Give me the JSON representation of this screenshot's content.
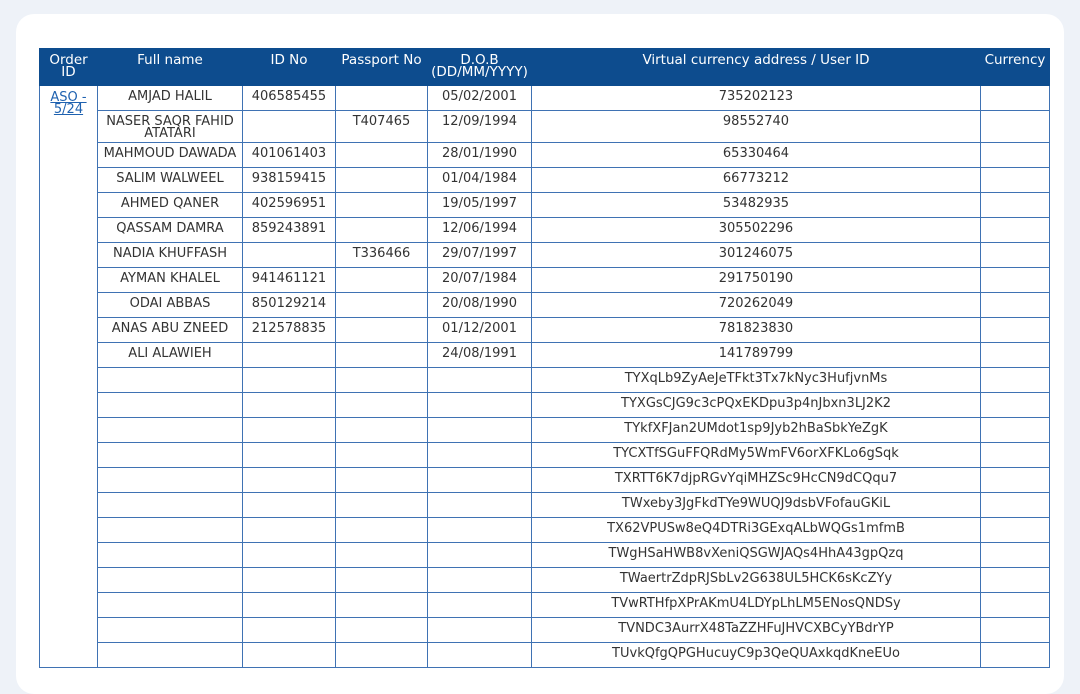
{
  "table": {
    "header": [
      "Order ID",
      "Full name",
      "ID No",
      "Passport No",
      "D.O.B (DD/MM/YYYY)",
      "Virtual currency address / User ID",
      "Currency"
    ],
    "order_id": "ASO - 5/24",
    "rows": [
      [
        "AMJAD HALIL",
        "406585455",
        null,
        "05/02/2001",
        "735202123"
      ],
      [
        "NASER SAQR FAHID ATATARI",
        null,
        "T407465",
        "12/09/1994",
        "98552740"
      ],
      [
        "MAHMOUD DAWADA",
        "401061403",
        null,
        "28/01/1990",
        "65330464"
      ],
      [
        "SALIM WALWEEL",
        "938159415",
        null,
        "01/04/1984",
        "66773212"
      ],
      [
        "AHMED QANER",
        "402596951",
        null,
        "19/05/1997",
        "53482935"
      ],
      [
        "QASSAM DAMRA",
        "859243891",
        null,
        "12/06/1994",
        "305502296"
      ],
      [
        "NADIA KHUFFASH",
        null,
        "T336466",
        "29/07/1997",
        "301246075"
      ],
      [
        "AYMAN KHALEL",
        "941461121",
        null,
        "20/07/1984",
        "291750190"
      ],
      [
        "ODAI ABBAS",
        "850129214",
        null,
        "20/08/1990",
        "720262049"
      ],
      [
        "ANAS ABU ZNEED",
        "212578835",
        null,
        "01/12/2001",
        "781823830"
      ],
      [
        "ALI ALAWIEH",
        null,
        null,
        "24/08/1991",
        "141789799"
      ],
      [
        null,
        null,
        null,
        null,
        "TYXqLb9ZyAeJeTFkt3Tx7kNyc3HufjvnMs"
      ],
      [
        null,
        null,
        null,
        null,
        "TYXGsCJG9c3cPQxEKDpu3p4nJbxn3LJ2K2"
      ],
      [
        null,
        null,
        null,
        null,
        "TYkfXFJan2UMdot1sp9Jyb2hBaSbkYeZgK"
      ],
      [
        null,
        null,
        null,
        null,
        "TYCXTfSGuFFQRdMy5WmFV6orXFKLo6gSqk"
      ],
      [
        null,
        null,
        null,
        null,
        "TXRTT6K7djpRGvYqiMHZSc9HcCN9dCQqu7"
      ],
      [
        null,
        null,
        null,
        null,
        "TWxeby3JgFkdTYe9WUQJ9dsbVFofauGKiL"
      ],
      [
        null,
        null,
        null,
        null,
        "TX62VPUSw8eQ4DTRi3GExqALbWQGs1mfmB"
      ],
      [
        null,
        null,
        null,
        null,
        "TWgHSaHWB8vXeniQSGWJAQs4HhA43gpQzq"
      ],
      [
        null,
        null,
        null,
        null,
        "TWaertrZdpRJSbLv2G638UL5HCK6sKcZYy"
      ],
      [
        null,
        null,
        null,
        null,
        "TVwRTHfpXPrAKmU4LDYpLhLM5ENosQNDSy"
      ],
      [
        null,
        null,
        null,
        null,
        "TVNDC3AurrX48TaZZHFuJHVCXBCyYBdrYP"
      ],
      [
        null,
        null,
        null,
        null,
        "TUvkQfgQPGHucuyC9p3QeQUAxkqdKneEUo"
      ]
    ]
  }
}
